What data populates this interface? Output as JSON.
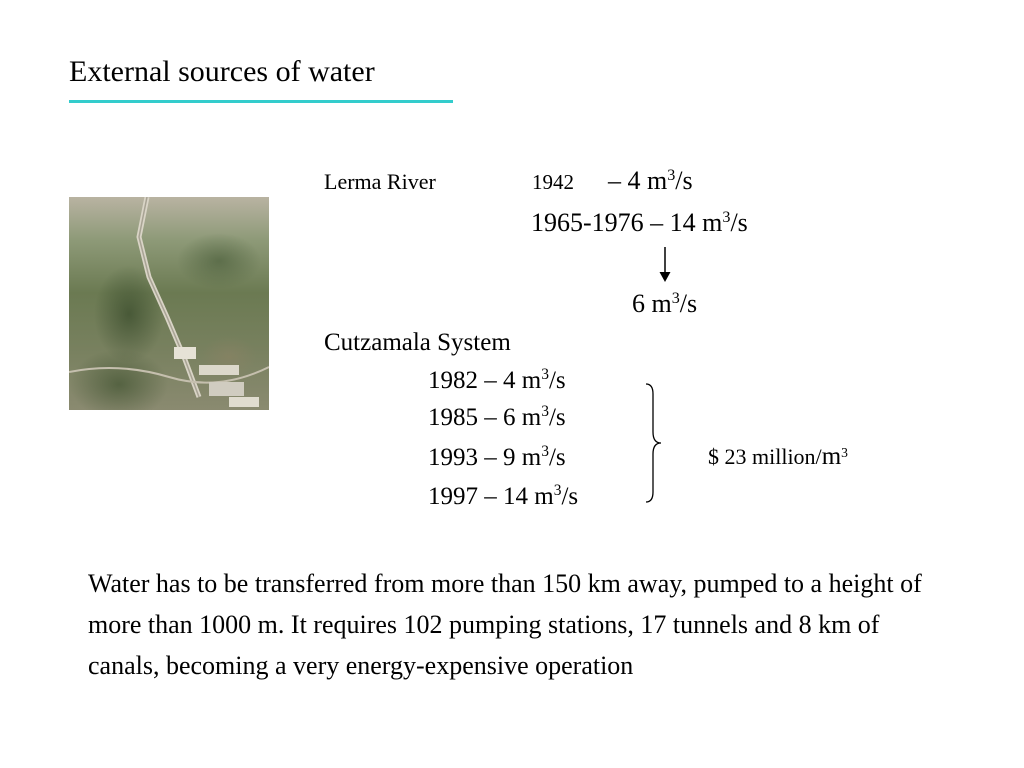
{
  "title": "External sources of water",
  "lerma": {
    "label": "Lerma River",
    "entries": [
      {
        "year": "1942",
        "rate_prefix": "– 4 m",
        "exp": "3",
        "rate_suffix": "/s"
      },
      {
        "text_prefix": "1965-1976 – 14 m",
        "exp": "3",
        "suffix": "/s"
      }
    ],
    "result": {
      "prefix": "6 m",
      "exp": "3",
      "suffix": "/s"
    }
  },
  "cutzamala": {
    "label": "Cutzamala System",
    "items": [
      {
        "prefix": "1982 – 4 m",
        "exp": "3",
        "suffix": "/s"
      },
      {
        "prefix": "1985 – 6 m",
        "exp": "3",
        "suffix": "/s"
      },
      {
        "prefix": "1993 – 9 m",
        "exp": "3",
        "suffix": "/s"
      },
      {
        "prefix": "1997 – 14 m",
        "exp": "3",
        "suffix": "/s"
      }
    ],
    "cost": {
      "prefix": "$ 23 million/",
      "unit": "m",
      "exp": "3"
    }
  },
  "paragraph": "Water has to be transferred from more than 150 km away, pumped to a height of more than 1000 m. It requires 102 pumping stations, 17 tunnels and 8 km of canals, becoming a very energy-expensive operation"
}
